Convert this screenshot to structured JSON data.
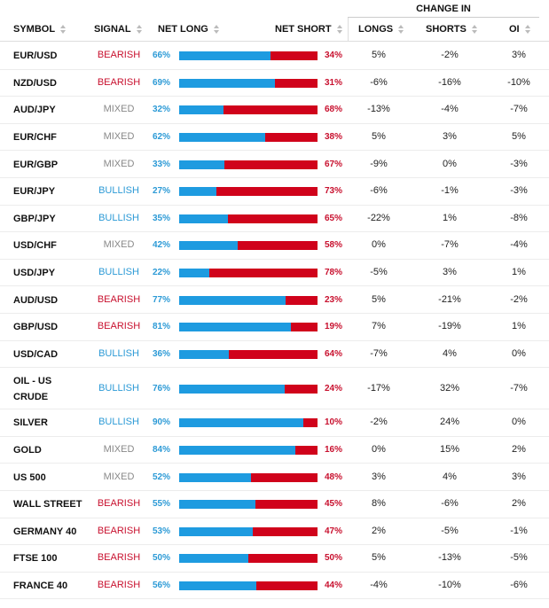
{
  "header": {
    "group_title": "CHANGE IN",
    "columns": {
      "symbol": "SYMBOL",
      "signal": "SIGNAL",
      "net_long": "NET LONG",
      "net_short": "NET SHORT",
      "longs": "LONGS",
      "shorts": "SHORTS",
      "oi": "OI"
    }
  },
  "colors": {
    "long_bar": "#1e9be0",
    "short_bar": "#d0021b",
    "bearish": "#c8102e",
    "bullish": "#2c9ad6",
    "mixed": "#888888"
  },
  "rows": [
    {
      "symbol": "EUR/USD",
      "signal": "BEARISH",
      "net_long": "66%",
      "net_long_pct": 66,
      "net_short": "34%",
      "longs": "5%",
      "shorts": "-2%",
      "oi": "3%"
    },
    {
      "symbol": "NZD/USD",
      "signal": "BEARISH",
      "net_long": "69%",
      "net_long_pct": 69,
      "net_short": "31%",
      "longs": "-6%",
      "shorts": "-16%",
      "oi": "-10%"
    },
    {
      "symbol": "AUD/JPY",
      "signal": "MIXED",
      "net_long": "32%",
      "net_long_pct": 32,
      "net_short": "68%",
      "longs": "-13%",
      "shorts": "-4%",
      "oi": "-7%"
    },
    {
      "symbol": "EUR/CHF",
      "signal": "MIXED",
      "net_long": "62%",
      "net_long_pct": 62,
      "net_short": "38%",
      "longs": "5%",
      "shorts": "3%",
      "oi": "5%"
    },
    {
      "symbol": "EUR/GBP",
      "signal": "MIXED",
      "net_long": "33%",
      "net_long_pct": 33,
      "net_short": "67%",
      "longs": "-9%",
      "shorts": "0%",
      "oi": "-3%"
    },
    {
      "symbol": "EUR/JPY",
      "signal": "BULLISH",
      "net_long": "27%",
      "net_long_pct": 27,
      "net_short": "73%",
      "longs": "-6%",
      "shorts": "-1%",
      "oi": "-3%"
    },
    {
      "symbol": "GBP/JPY",
      "signal": "BULLISH",
      "net_long": "35%",
      "net_long_pct": 35,
      "net_short": "65%",
      "longs": "-22%",
      "shorts": "1%",
      "oi": "-8%"
    },
    {
      "symbol": "USD/CHF",
      "signal": "MIXED",
      "net_long": "42%",
      "net_long_pct": 42,
      "net_short": "58%",
      "longs": "0%",
      "shorts": "-7%",
      "oi": "-4%"
    },
    {
      "symbol": "USD/JPY",
      "signal": "BULLISH",
      "net_long": "22%",
      "net_long_pct": 22,
      "net_short": "78%",
      "longs": "-5%",
      "shorts": "3%",
      "oi": "1%"
    },
    {
      "symbol": "AUD/USD",
      "signal": "BEARISH",
      "net_long": "77%",
      "net_long_pct": 77,
      "net_short": "23%",
      "longs": "5%",
      "shorts": "-21%",
      "oi": "-2%"
    },
    {
      "symbol": "GBP/USD",
      "signal": "BEARISH",
      "net_long": "81%",
      "net_long_pct": 81,
      "net_short": "19%",
      "longs": "7%",
      "shorts": "-19%",
      "oi": "1%"
    },
    {
      "symbol": "USD/CAD",
      "signal": "BULLISH",
      "net_long": "36%",
      "net_long_pct": 36,
      "net_short": "64%",
      "longs": "-7%",
      "shorts": "4%",
      "oi": "0%"
    },
    {
      "symbol": "OIL - US CRUDE",
      "signal": "BULLISH",
      "net_long": "76%",
      "net_long_pct": 76,
      "net_short": "24%",
      "longs": "-17%",
      "shorts": "32%",
      "oi": "-7%"
    },
    {
      "symbol": "SILVER",
      "signal": "BULLISH",
      "net_long": "90%",
      "net_long_pct": 90,
      "net_short": "10%",
      "longs": "-2%",
      "shorts": "24%",
      "oi": "0%"
    },
    {
      "symbol": "GOLD",
      "signal": "MIXED",
      "net_long": "84%",
      "net_long_pct": 84,
      "net_short": "16%",
      "longs": "0%",
      "shorts": "15%",
      "oi": "2%"
    },
    {
      "symbol": "US 500",
      "signal": "MIXED",
      "net_long": "52%",
      "net_long_pct": 52,
      "net_short": "48%",
      "longs": "3%",
      "shorts": "4%",
      "oi": "3%"
    },
    {
      "symbol": "WALL STREET",
      "signal": "BEARISH",
      "net_long": "55%",
      "net_long_pct": 55,
      "net_short": "45%",
      "longs": "8%",
      "shorts": "-6%",
      "oi": "2%"
    },
    {
      "symbol": "GERMANY 40",
      "signal": "BEARISH",
      "net_long": "53%",
      "net_long_pct": 53,
      "net_short": "47%",
      "longs": "2%",
      "shorts": "-5%",
      "oi": "-1%"
    },
    {
      "symbol": "FTSE 100",
      "signal": "BEARISH",
      "net_long": "50%",
      "net_long_pct": 50,
      "net_short": "50%",
      "longs": "5%",
      "shorts": "-13%",
      "oi": "-5%"
    },
    {
      "symbol": "FRANCE 40",
      "signal": "BEARISH",
      "net_long": "56%",
      "net_long_pct": 56,
      "net_short": "44%",
      "longs": "-4%",
      "shorts": "-10%",
      "oi": "-6%"
    }
  ]
}
